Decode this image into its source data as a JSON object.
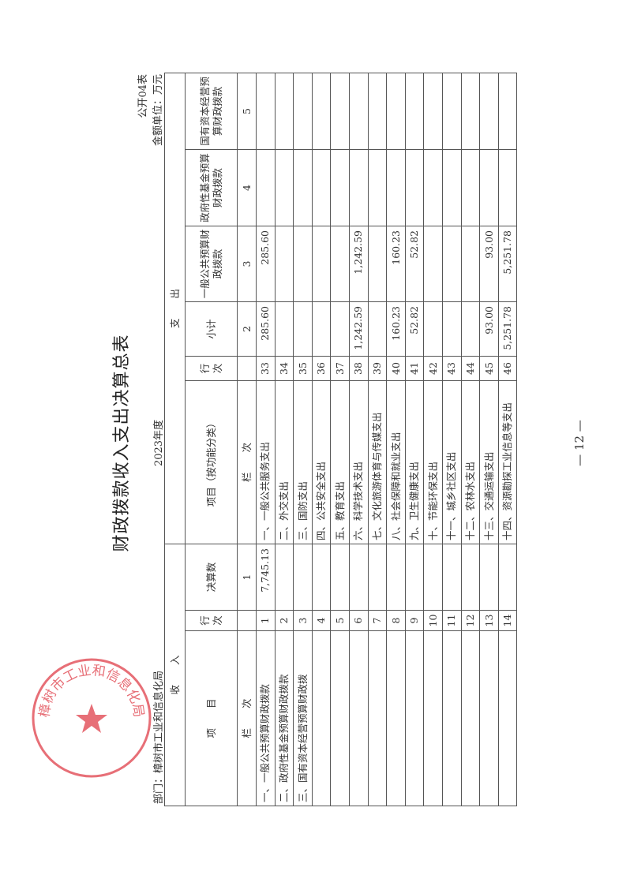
{
  "document": {
    "title": "财政拨款收入支出决算总表",
    "year": "2023年度",
    "form_no": "公开04表",
    "department": "部门：樟树市工业和信息化局",
    "unit": "金额单位：万元",
    "page_number": "— 12 —",
    "seal_text": "樟树市工业和信息化局",
    "seal_color": "#e0404a"
  },
  "table": {
    "income_header": "收　　入",
    "expense_header": "支　　出",
    "columns": {
      "income_item": "项　　目",
      "income_row_no": "行次",
      "income_amount": "决算数",
      "expense_item": "项目（按功能分类）",
      "expense_row_no": "行次",
      "subtotal": "小计",
      "general_budget": "一般公共预算财政拨款",
      "gov_fund": "政府性基金预算财政拨款",
      "state_capital": "国有资本经营预算财政拨款"
    },
    "column_index": {
      "income_label": "栏　　次",
      "income_amount": "1",
      "expense_label": "栏　　次",
      "subtotal": "2",
      "general_budget": "3",
      "gov_fund": "4",
      "state_capital": "5"
    },
    "rows": [
      {
        "income_item": "一、一般公共预算财政拨款",
        "income_row": "1",
        "income_amount": "7,745.13",
        "expense_item": "一、一般公共服务支出",
        "expense_row": "33",
        "subtotal": "285.60",
        "general": "285.60",
        "fund": "",
        "capital": ""
      },
      {
        "income_item": "二、政府性基金预算财政拨款",
        "income_row": "2",
        "income_amount": "",
        "expense_item": "二、外交支出",
        "expense_row": "34",
        "subtotal": "",
        "general": "",
        "fund": "",
        "capital": ""
      },
      {
        "income_item": "三、国有资本经营预算财政拨",
        "income_row": "3",
        "income_amount": "",
        "expense_item": "三、国防支出",
        "expense_row": "35",
        "subtotal": "",
        "general": "",
        "fund": "",
        "capital": ""
      },
      {
        "income_item": "",
        "income_row": "4",
        "income_amount": "",
        "expense_item": "四、公共安全支出",
        "expense_row": "36",
        "subtotal": "",
        "general": "",
        "fund": "",
        "capital": ""
      },
      {
        "income_item": "",
        "income_row": "5",
        "income_amount": "",
        "expense_item": "五、教育支出",
        "expense_row": "37",
        "subtotal": "",
        "general": "",
        "fund": "",
        "capital": ""
      },
      {
        "income_item": "",
        "income_row": "6",
        "income_amount": "",
        "expense_item": "六、科学技术支出",
        "expense_row": "38",
        "subtotal": "1,242.59",
        "general": "1,242.59",
        "fund": "",
        "capital": ""
      },
      {
        "income_item": "",
        "income_row": "7",
        "income_amount": "",
        "expense_item": "七、文化旅游体育与传媒支出",
        "expense_row": "39",
        "subtotal": "",
        "general": "",
        "fund": "",
        "capital": ""
      },
      {
        "income_item": "",
        "income_row": "8",
        "income_amount": "",
        "expense_item": "八、社会保障和就业支出",
        "expense_row": "40",
        "subtotal": "160.23",
        "general": "160.23",
        "fund": "",
        "capital": ""
      },
      {
        "income_item": "",
        "income_row": "9",
        "income_amount": "",
        "expense_item": "九、卫生健康支出",
        "expense_row": "41",
        "subtotal": "52.82",
        "general": "52.82",
        "fund": "",
        "capital": ""
      },
      {
        "income_item": "",
        "income_row": "10",
        "income_amount": "",
        "expense_item": "十、节能环保支出",
        "expense_row": "42",
        "subtotal": "",
        "general": "",
        "fund": "",
        "capital": ""
      },
      {
        "income_item": "",
        "income_row": "11",
        "income_amount": "",
        "expense_item": "十一、城乡社区支出",
        "expense_row": "43",
        "subtotal": "",
        "general": "",
        "fund": "",
        "capital": ""
      },
      {
        "income_item": "",
        "income_row": "12",
        "income_amount": "",
        "expense_item": "十二、农林水支出",
        "expense_row": "44",
        "subtotal": "",
        "general": "",
        "fund": "",
        "capital": ""
      },
      {
        "income_item": "",
        "income_row": "13",
        "income_amount": "",
        "expense_item": "十三、交通运输支出",
        "expense_row": "45",
        "subtotal": "93.00",
        "general": "93.00",
        "fund": "",
        "capital": ""
      },
      {
        "income_item": "",
        "income_row": "14",
        "income_amount": "",
        "expense_item": "十四、资源勘探工业信息等支出",
        "expense_row": "46",
        "subtotal": "5,251.78",
        "general": "5,251.78",
        "fund": "",
        "capital": ""
      }
    ]
  }
}
